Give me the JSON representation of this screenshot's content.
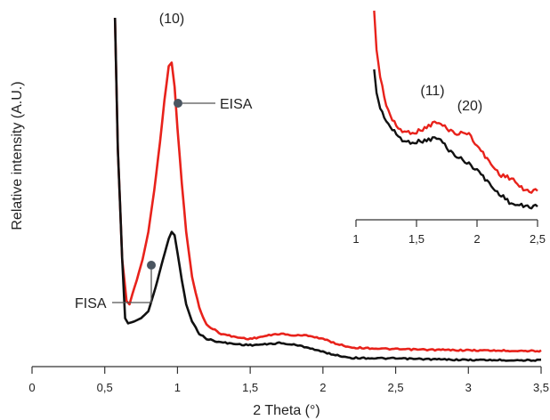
{
  "chart_data": {
    "type": "line",
    "xlabel": "2 Theta (°)",
    "ylabel": "Relative intensity (A.U.)",
    "xlim": [
      0,
      3.5
    ],
    "x_ticks": [
      "0",
      "0,5",
      "1",
      "1,5",
      "2",
      "2,5",
      "3",
      "3,5"
    ],
    "grid": false,
    "legend": "none",
    "series": [
      {
        "name": "EISA",
        "color": "#e8221b",
        "points": [
          [
            0.57,
            100
          ],
          [
            0.59,
            62
          ],
          [
            0.62,
            30
          ],
          [
            0.65,
            18
          ],
          [
            0.67,
            17
          ],
          [
            0.69,
            20
          ],
          [
            0.72,
            24
          ],
          [
            0.76,
            30
          ],
          [
            0.8,
            38
          ],
          [
            0.84,
            50
          ],
          [
            0.88,
            64
          ],
          [
            0.91,
            76
          ],
          [
            0.94,
            86
          ],
          [
            0.96,
            87
          ],
          [
            0.98,
            80
          ],
          [
            1.0,
            68
          ],
          [
            1.03,
            52
          ],
          [
            1.06,
            38
          ],
          [
            1.1,
            25
          ],
          [
            1.15,
            16
          ],
          [
            1.2,
            11
          ],
          [
            1.3,
            8.5
          ],
          [
            1.4,
            7.5
          ],
          [
            1.5,
            7
          ],
          [
            1.6,
            7.8
          ],
          [
            1.7,
            8.5
          ],
          [
            1.8,
            8
          ],
          [
            1.9,
            8
          ],
          [
            2.0,
            7
          ],
          [
            2.1,
            5.5
          ],
          [
            2.2,
            4.5
          ],
          [
            2.5,
            4
          ],
          [
            3.0,
            3.7
          ],
          [
            3.5,
            3.5
          ]
        ]
      },
      {
        "name": "FISA",
        "color": "#111111",
        "points": [
          [
            0.57,
            100
          ],
          [
            0.59,
            62
          ],
          [
            0.62,
            30
          ],
          [
            0.64,
            13
          ],
          [
            0.66,
            11.5
          ],
          [
            0.7,
            12
          ],
          [
            0.75,
            13
          ],
          [
            0.8,
            15
          ],
          [
            0.85,
            22
          ],
          [
            0.9,
            30
          ],
          [
            0.94,
            36
          ],
          [
            0.96,
            38
          ],
          [
            0.98,
            37
          ],
          [
            1.0,
            32
          ],
          [
            1.03,
            24
          ],
          [
            1.06,
            17
          ],
          [
            1.1,
            12
          ],
          [
            1.15,
            8.5
          ],
          [
            1.2,
            7
          ],
          [
            1.3,
            6
          ],
          [
            1.4,
            5.5
          ],
          [
            1.5,
            5.2
          ],
          [
            1.6,
            5.4
          ],
          [
            1.7,
            5.8
          ],
          [
            1.8,
            5.3
          ],
          [
            1.9,
            4.5
          ],
          [
            2.0,
            3.2
          ],
          [
            2.1,
            2.2
          ],
          [
            2.2,
            1.5
          ],
          [
            2.5,
            1.3
          ],
          [
            3.0,
            0.9
          ],
          [
            3.5,
            0.8
          ]
        ]
      }
    ],
    "annotations": {
      "peak_10": "(10)",
      "eisa": "EISA",
      "fisa": "FISA"
    },
    "inset": {
      "xlim": [
        1,
        2.5
      ],
      "x_ticks": [
        "1",
        "1,5",
        "2",
        "2,5"
      ],
      "peak_11": "(11)",
      "peak_20": "(20)",
      "series": [
        {
          "name": "EISA",
          "color": "#e8221b",
          "points": [
            [
              1.15,
              100
            ],
            [
              1.17,
              80
            ],
            [
              1.2,
              66
            ],
            [
              1.25,
              52
            ],
            [
              1.3,
              44
            ],
            [
              1.35,
              40
            ],
            [
              1.4,
              38
            ],
            [
              1.5,
              38
            ],
            [
              1.6,
              41
            ],
            [
              1.65,
              43
            ],
            [
              1.7,
              42
            ],
            [
              1.75,
              40
            ],
            [
              1.8,
              38
            ],
            [
              1.85,
              37
            ],
            [
              1.9,
              38
            ],
            [
              1.95,
              36
            ],
            [
              2.0,
              31
            ],
            [
              2.05,
              27
            ],
            [
              2.1,
              23
            ],
            [
              2.15,
              19
            ],
            [
              2.2,
              16
            ],
            [
              2.3,
              14
            ],
            [
              2.35,
              10
            ],
            [
              2.4,
              8
            ],
            [
              2.5,
              8
            ]
          ]
        },
        {
          "name": "FISA",
          "color": "#111111",
          "points": [
            [
              1.15,
              70
            ],
            [
              1.17,
              58
            ],
            [
              1.2,
              50
            ],
            [
              1.25,
              44
            ],
            [
              1.3,
              39
            ],
            [
              1.35,
              36
            ],
            [
              1.4,
              33
            ],
            [
              1.5,
              33
            ],
            [
              1.6,
              34
            ],
            [
              1.65,
              35
            ],
            [
              1.7,
              34
            ],
            [
              1.75,
              30
            ],
            [
              1.8,
              27
            ],
            [
              1.85,
              25
            ],
            [
              1.9,
              23
            ],
            [
              1.95,
              21
            ],
            [
              2.0,
              19
            ],
            [
              2.05,
              15
            ],
            [
              2.1,
              12
            ],
            [
              2.15,
              8
            ],
            [
              2.2,
              6
            ],
            [
              2.25,
              3
            ],
            [
              2.3,
              1
            ],
            [
              2.4,
              0
            ],
            [
              2.5,
              0
            ]
          ]
        }
      ]
    }
  }
}
